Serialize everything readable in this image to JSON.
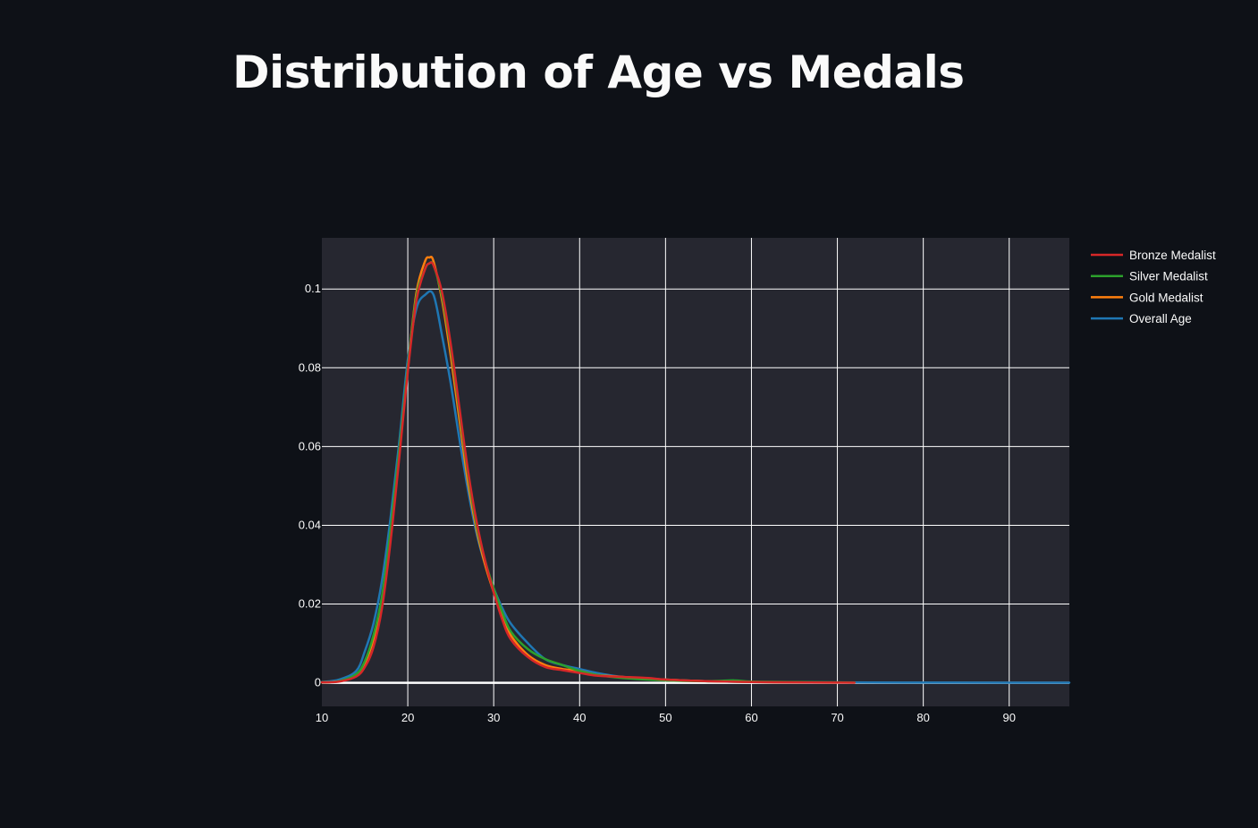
{
  "page": {
    "title": "Distribution of Age vs Medals"
  },
  "chart_data": {
    "type": "line",
    "title": "Distribution of Age vs Medals",
    "xlabel": "",
    "ylabel": "",
    "xlim": [
      10,
      97
    ],
    "ylim": [
      -0.006,
      0.113
    ],
    "x_ticks": [
      10,
      20,
      30,
      40,
      50,
      60,
      70,
      80,
      90
    ],
    "y_ticks": [
      0,
      0.02,
      0.04,
      0.06,
      0.08,
      0.1
    ],
    "grid": true,
    "legend_position": "right",
    "series": [
      {
        "name": "Overall Age",
        "color": "#1f77b4",
        "x": [
          10,
          12,
          14,
          15,
          16,
          17,
          18,
          19,
          20,
          21,
          22,
          23,
          24,
          25,
          26,
          27,
          28,
          29,
          30,
          31,
          32,
          34,
          36,
          38,
          40,
          42,
          45,
          50,
          55,
          60,
          70,
          80,
          90,
          97
        ],
        "y": [
          0.0002,
          0.0008,
          0.003,
          0.008,
          0.015,
          0.026,
          0.042,
          0.061,
          0.082,
          0.095,
          0.0985,
          0.0985,
          0.088,
          0.076,
          0.062,
          0.049,
          0.038,
          0.03,
          0.024,
          0.019,
          0.015,
          0.01,
          0.006,
          0.0045,
          0.0035,
          0.0025,
          0.0015,
          0.0008,
          0.0004,
          0.0002,
          0.0001,
          5e-05,
          3e-05,
          2e-05
        ]
      },
      {
        "name": "Gold Medalist",
        "color": "#ff7f0e",
        "x": [
          10,
          12,
          14,
          15,
          16,
          17,
          18,
          19,
          20,
          21,
          22,
          22.5,
          23,
          24,
          25,
          26,
          27,
          28,
          29,
          30,
          31,
          32,
          34,
          36,
          38,
          40,
          42,
          45,
          50,
          55,
          60,
          65,
          70
        ],
        "y": [
          0.0001,
          0.0004,
          0.002,
          0.005,
          0.011,
          0.021,
          0.038,
          0.058,
          0.08,
          0.099,
          0.107,
          0.108,
          0.107,
          0.097,
          0.083,
          0.067,
          0.051,
          0.039,
          0.03,
          0.023,
          0.017,
          0.012,
          0.007,
          0.0045,
          0.0035,
          0.003,
          0.002,
          0.0015,
          0.0008,
          0.0004,
          0.0002,
          0.0001,
          5e-05
        ]
      },
      {
        "name": "Silver Medalist",
        "color": "#2ca02c",
        "x": [
          10,
          12,
          14,
          15,
          16,
          17,
          18,
          19,
          20,
          21,
          22,
          22.5,
          23,
          24,
          25,
          26,
          27,
          28,
          29,
          30,
          31,
          32,
          34,
          36,
          38,
          40,
          42,
          45,
          50,
          55,
          58,
          60,
          65,
          70,
          72
        ],
        "y": [
          0.0001,
          0.0004,
          0.0022,
          0.0055,
          0.012,
          0.022,
          0.039,
          0.059,
          0.08,
          0.098,
          0.105,
          0.1065,
          0.106,
          0.098,
          0.085,
          0.069,
          0.053,
          0.04,
          0.031,
          0.024,
          0.018,
          0.013,
          0.0085,
          0.006,
          0.0045,
          0.003,
          0.002,
          0.0012,
          0.0006,
          0.0004,
          0.0006,
          0.0003,
          0.0002,
          0.0001,
          5e-05
        ]
      },
      {
        "name": "Bronze Medalist",
        "color": "#d62728",
        "x": [
          10,
          12,
          14,
          15,
          16,
          17,
          18,
          19,
          20,
          21,
          22,
          22.5,
          23,
          24,
          25,
          26,
          27,
          28,
          29,
          30,
          31,
          32,
          34,
          36,
          38,
          40,
          42,
          45,
          48,
          50,
          55,
          60,
          65,
          70,
          72
        ],
        "y": [
          0.0001,
          0.0003,
          0.0016,
          0.004,
          0.009,
          0.019,
          0.036,
          0.057,
          0.079,
          0.097,
          0.105,
          0.1065,
          0.106,
          0.099,
          0.086,
          0.07,
          0.054,
          0.041,
          0.031,
          0.023,
          0.016,
          0.011,
          0.0065,
          0.004,
          0.0032,
          0.0025,
          0.0018,
          0.0015,
          0.0012,
          0.0008,
          0.0004,
          0.0002,
          0.0001,
          5e-05,
          3e-05
        ]
      }
    ],
    "legend_order": [
      "Bronze Medalist",
      "Silver Medalist",
      "Gold Medalist",
      "Overall Age"
    ]
  }
}
